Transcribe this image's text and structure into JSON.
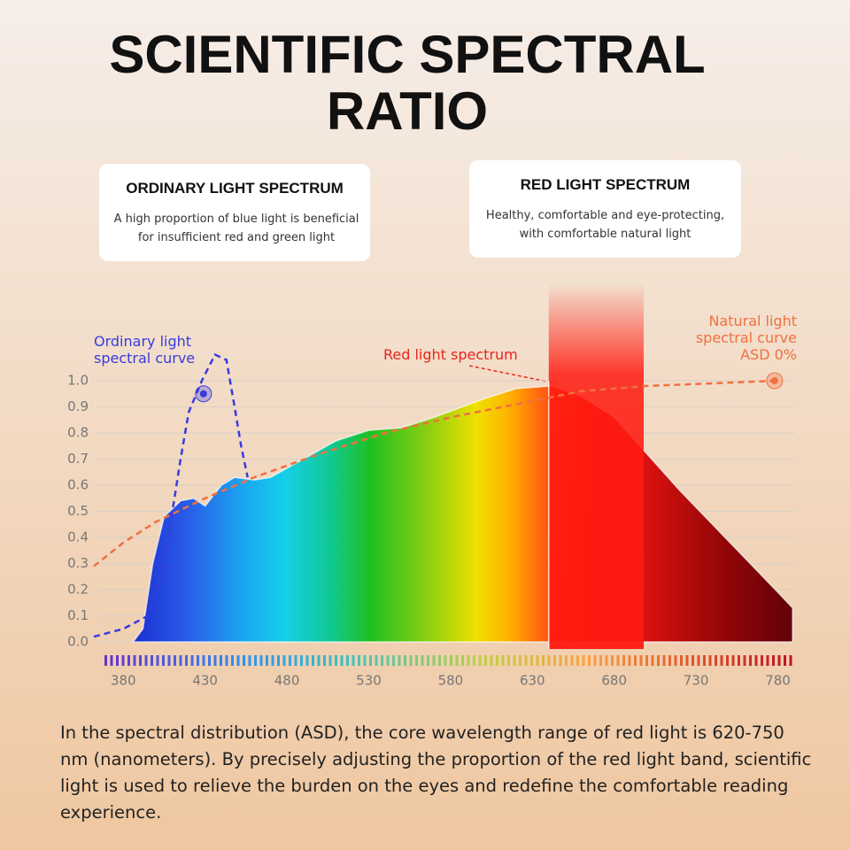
{
  "title": "SCIENTIFIC SPECTRAL RATIO",
  "cards": [
    {
      "title": "ORDINARY LIGHT SPECTRUM",
      "text": "A high proportion of blue light is beneficial for insufficient red and green light"
    },
    {
      "title": "RED LIGHT SPECTRUM",
      "text": "Healthy, comfortable and eye-protecting, with comfortable natural light"
    }
  ],
  "chart_data": {
    "type": "area",
    "xlim": [
      362,
      790
    ],
    "ylim": [
      0,
      1.1
    ],
    "xticks": [
      380,
      430,
      480,
      530,
      580,
      630,
      680,
      730,
      780
    ],
    "yticks": [
      {
        "value": 0,
        "label": "0.0"
      },
      0.1,
      0.2,
      0.3,
      0.4,
      0.5,
      0.6,
      0.7,
      0.8,
      0.9,
      {
        "value": 1,
        "label": "1.0"
      }
    ],
    "grid": true,
    "highlight_band": [
      640,
      698
    ],
    "highlight_color": "#ff1a10",
    "series": [
      {
        "name": "Red light spectrum",
        "color": "#e8241c",
        "style": "area",
        "x": [
          386,
          392,
          398,
          405,
          415,
          423,
          430,
          440,
          448,
          460,
          470,
          490,
          510,
          530,
          550,
          570,
          600,
          620,
          642,
          660,
          680,
          700,
          720,
          740,
          760,
          780,
          789
        ],
        "values": [
          0,
          0.05,
          0.3,
          0.48,
          0.54,
          0.55,
          0.52,
          0.6,
          0.63,
          0.62,
          0.63,
          0.7,
          0.77,
          0.81,
          0.82,
          0.86,
          0.93,
          0.97,
          0.98,
          0.94,
          0.86,
          0.72,
          0.58,
          0.45,
          0.32,
          0.19,
          0.13
        ]
      },
      {
        "name": "Ordinary light spectral curve",
        "color": "#3a3ae0",
        "style": "dashed",
        "x": [
          362,
          380,
          395,
          405,
          415,
          420,
          428,
          436,
          443,
          448,
          452,
          456
        ],
        "values": [
          0.02,
          0.05,
          0.1,
          0.3,
          0.7,
          0.88,
          1.0,
          1.1,
          1.08,
          0.9,
          0.75,
          0.63
        ],
        "marker": {
          "x": 429,
          "y": 0.95
        }
      },
      {
        "name": "Natural light spectral curve ASD 0%",
        "color": "#f07040",
        "style": "dashed",
        "x": [
          362,
          380,
          400,
          430,
          460,
          500,
          540,
          580,
          620,
          660,
          700,
          740,
          778
        ],
        "values": [
          0.29,
          0.38,
          0.46,
          0.55,
          0.63,
          0.72,
          0.8,
          0.86,
          0.91,
          0.96,
          0.98,
          0.99,
          1.0
        ],
        "marker": {
          "x": 778,
          "y": 1.0
        }
      }
    ]
  },
  "footer": "In the spectral distribution (ASD), the core wavelength range of red light is 620-750 nm (nanometers). By precisely adjusting the proportion of the red light band, scientific light is used to relieve the burden on the eyes and redefine the comfortable reading experience."
}
